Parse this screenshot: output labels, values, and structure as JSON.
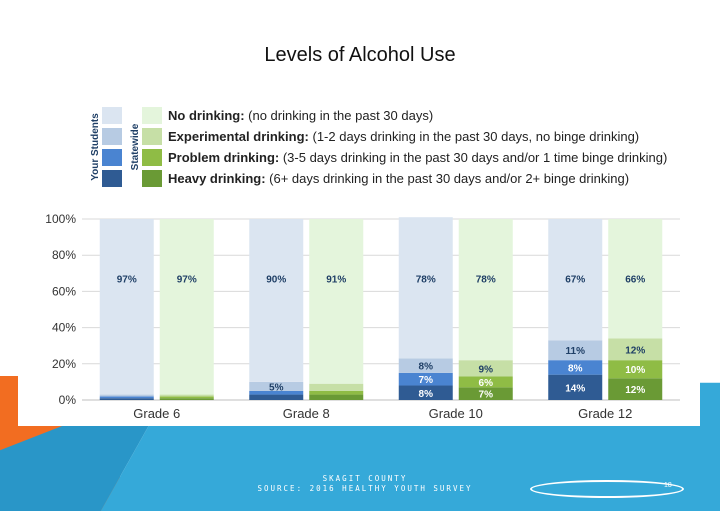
{
  "slide": {
    "title": "Levels of Alcohol Use",
    "footer_line1": "SKAGIT COUNTY",
    "footer_line2": "SOURCE: 2016 HEALTHY YOUTH SURVEY",
    "page_number": "18"
  },
  "colors": {
    "your_students": [
      "#dbe5f1",
      "#b7cbe3",
      "#4a84d1",
      "#2f5b93"
    ],
    "statewide": [
      "#e4f5dc",
      "#c6dfa6",
      "#8fbc45",
      "#6a9a35"
    ],
    "orange": "#f26d21",
    "blue": "#35a9d9"
  },
  "legend": {
    "group_labels": [
      "Your Students",
      "Statewide"
    ],
    "items": [
      {
        "bold": "No drinking:",
        "text": " (no drinking in the past 30 days)"
      },
      {
        "bold": "Experimental drinking:",
        "text": " (1-2 days drinking in the past 30 days, no binge drinking)"
      },
      {
        "bold": "Problem drinking:",
        "text": " (3-5 days drinking in the past 30 days and/or 1 time binge drinking)"
      },
      {
        "bold": "Heavy drinking:",
        "text": " (6+ days drinking in the past 30 days and/or 2+ binge drinking)"
      }
    ]
  },
  "chart_data": {
    "type": "bar",
    "stacked": true,
    "categories": [
      "Grade 6",
      "Grade 8",
      "Grade 10",
      "Grade 12"
    ],
    "groups": [
      "Your Students",
      "Statewide"
    ],
    "series": [
      {
        "name": "No drinking",
        "your_students": [
          97,
          90,
          78,
          67
        ],
        "statewide": [
          97,
          91,
          78,
          66
        ]
      },
      {
        "name": "Experimental drinking",
        "your_students": [
          1,
          5,
          8,
          11
        ],
        "statewide": [
          1,
          4,
          9,
          12
        ]
      },
      {
        "name": "Problem drinking",
        "your_students": [
          1,
          2,
          7,
          8
        ],
        "statewide": [
          1,
          2,
          6,
          10
        ]
      },
      {
        "name": "Heavy drinking",
        "your_students": [
          1,
          3,
          8,
          14
        ],
        "statewide": [
          1,
          3,
          7,
          12
        ]
      }
    ],
    "data_labels": {
      "your_students": [
        [
          "97%",
          "",
          "",
          ""
        ],
        [
          "90%",
          "5%",
          "",
          ""
        ],
        [
          "78%",
          "8%",
          "7%",
          "8%"
        ],
        [
          "67%",
          "11%",
          "8%",
          "14%"
        ]
      ],
      "statewide": [
        [
          "97%",
          "",
          "",
          ""
        ],
        [
          "91%",
          "",
          "",
          ""
        ],
        [
          "78%",
          "9%",
          "6%",
          "7%"
        ],
        [
          "66%",
          "12%",
          "10%",
          "12%"
        ]
      ]
    },
    "y_ticks": [
      "0%",
      "20%",
      "40%",
      "60%",
      "80%",
      "100%"
    ],
    "ylim": [
      0,
      100
    ],
    "grid": true,
    "legend_position": "top"
  }
}
